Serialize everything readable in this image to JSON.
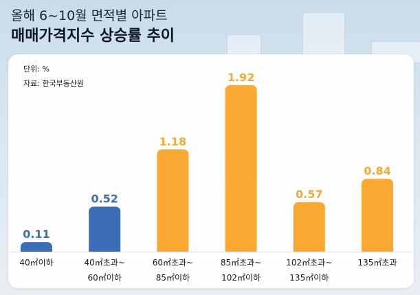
{
  "header": {
    "title_line1": "올해 6~10월 면적별 아파트",
    "title_line2": "매매가격지수 상승률 추이"
  },
  "notes": {
    "unit": "단위: %",
    "source": "자료: 한국부동산원"
  },
  "colors": {
    "blue": "#3b6db4",
    "orange": "#f9a832"
  },
  "chart_data": {
    "type": "bar",
    "title": "올해 6~10월 면적별 아파트 매매가격지수 상승률 추이",
    "ylabel": "%",
    "ylim": [
      0,
      2.0
    ],
    "grid": false,
    "categories": [
      [
        "40㎡이하"
      ],
      [
        "40㎡초과~",
        "60㎡이하"
      ],
      [
        "60㎡초과~",
        "85㎡이하"
      ],
      [
        "85㎡초과~",
        "102㎡이하"
      ],
      [
        "102㎡초과~",
        "135㎡이하"
      ],
      [
        "135㎡초과"
      ]
    ],
    "values": [
      0.11,
      0.52,
      1.18,
      1.92,
      0.57,
      0.84
    ],
    "value_labels": [
      "0.11",
      "0.52",
      "1.18",
      "1.92",
      "0.57",
      "0.84"
    ],
    "bar_colors": [
      "blue",
      "blue",
      "orange",
      "orange",
      "orange",
      "orange"
    ]
  }
}
